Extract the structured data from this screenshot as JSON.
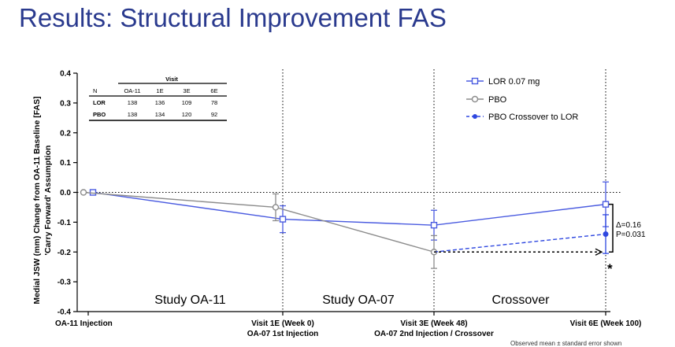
{
  "title": "Results: Structural Improvement FAS",
  "footnote": "Observed mean ± standard error shown",
  "chart_data": {
    "type": "line",
    "ylabel": "Medial JSW (mm) Change from OA-11 Baseline [FAS]",
    "ylabel_line2": "'Carry Forward' Assumption",
    "ylim": [
      -0.4,
      0.4
    ],
    "yticks": [
      "0.4",
      "0.3",
      "0.2",
      "0.1",
      "0.0",
      "-0.1",
      "-0.2",
      "-0.3",
      "-0.4"
    ],
    "x_ticks": [
      {
        "label1": "OA-11 Injection",
        "label2": ""
      },
      {
        "label1": "Visit 1E (Week 0)",
        "label2": "OA-07 1st Injection"
      },
      {
        "label1": "Visit 3E (Week 48)",
        "label2": "OA-07 2nd Injection / Crossover"
      },
      {
        "label1": "Visit 6E (Week 100)",
        "label2": ""
      }
    ],
    "regions": [
      "Study OA-11",
      "Study OA-07",
      "Crossover"
    ],
    "colors": {
      "lor": "#4a5be0",
      "pbo": "#8c8c8c",
      "crossover": "#2e47e0",
      "annotation": "#000000"
    },
    "series": [
      {
        "name": "LOR 0.07 mg",
        "marker": "square",
        "style": "solid",
        "points": [
          {
            "x": 0,
            "y": 0.0,
            "err": 0
          },
          {
            "x": 1,
            "y": -0.09,
            "err": 0.045
          },
          {
            "x": 2,
            "y": -0.11,
            "err": 0.05
          },
          {
            "x": 3,
            "y": -0.04,
            "err": 0.075
          }
        ]
      },
      {
        "name": "PBO",
        "marker": "circle",
        "style": "solid",
        "points": [
          {
            "x": 0,
            "y": 0.0,
            "err": 0
          },
          {
            "x": 1,
            "y": -0.05,
            "err": 0.045
          },
          {
            "x": 2,
            "y": -0.2,
            "err": 0.055
          }
        ]
      },
      {
        "name": "PBO Crossover to LOR",
        "marker": "dot",
        "style": "dashed",
        "points": [
          {
            "x": 2,
            "y": -0.2,
            "err": 0
          },
          {
            "x": 3,
            "y": -0.14,
            "err": 0.065
          }
        ]
      }
    ],
    "reference_y": -0.2,
    "annotation": {
      "delta": "Δ=0.16",
      "p": "P=0.031",
      "star": "*"
    },
    "table": {
      "header": "Visit",
      "columns": [
        "N",
        "OA-11",
        "1E",
        "3E",
        "6E"
      ],
      "rows": [
        {
          "label": "LOR",
          "values": [
            "138",
            "136",
            "109",
            "78"
          ]
        },
        {
          "label": "PBO",
          "values": [
            "138",
            "134",
            "120",
            "92"
          ]
        }
      ]
    }
  }
}
